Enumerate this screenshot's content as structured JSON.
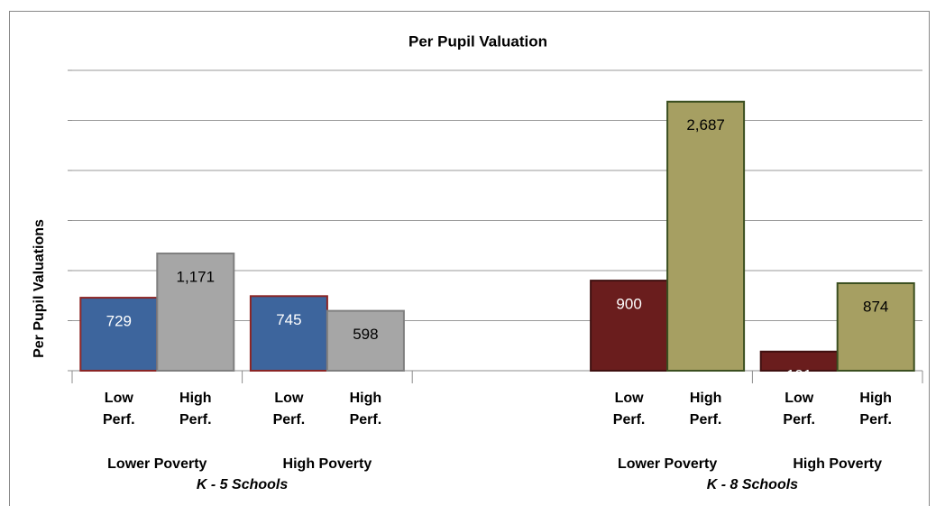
{
  "chart_data": {
    "type": "bar",
    "title": "Per Pupil Valuation",
    "y_label": "Per Pupil Valuations",
    "ylim": [
      0,
      3000
    ],
    "yticks": [
      0,
      500,
      1000,
      1500,
      2000,
      2500,
      3000
    ],
    "grid": true,
    "groups": [
      {
        "name": "K - 5 Schools",
        "categories": [
          "Lower Poverty",
          "High Poverty"
        ],
        "series": [
          {
            "name": "Low Perf.",
            "color": "#3d659d",
            "edgecolor": "#8b2525",
            "label_color": "#ffffff",
            "values": [
              729,
              745
            ]
          },
          {
            "name": "High Perf.",
            "color": "#a6a6a6",
            "edgecolor": "#7f7f7f",
            "label_color": "#000000",
            "values": [
              1171,
              598
            ],
            "value_labels": [
              "1,171",
              "598"
            ]
          }
        ]
      },
      {
        "name": "K - 8 Schools",
        "categories": [
          "Lower Poverty",
          "High Poverty"
        ],
        "series": [
          {
            "name": "Low Perf.",
            "color": "#6a1d1d",
            "edgecolor": "#3f1010",
            "label_color": "#ffffff",
            "values": [
              900,
              191
            ]
          },
          {
            "name": "High Perf.",
            "color": "#a69f62",
            "edgecolor": "#3b4f20",
            "label_color": "#000000",
            "values": [
              2687,
              874
            ],
            "value_labels": [
              "2,687",
              "874"
            ]
          }
        ]
      }
    ]
  }
}
